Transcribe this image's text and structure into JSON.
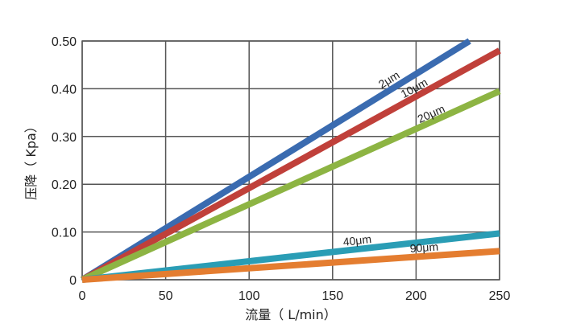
{
  "chart_data": {
    "type": "line",
    "xlabel": "流量（ L/min）",
    "ylabel": "压降（ Kpa）",
    "xlim": [
      0,
      250
    ],
    "ylim": [
      0,
      0.5
    ],
    "x_ticks": [
      "0",
      "50",
      "100",
      "150",
      "200",
      "250"
    ],
    "y_ticks": [
      "0",
      "0.10",
      "0.20",
      "0.30",
      "0.40",
      "0.50"
    ],
    "grid": true,
    "series": [
      {
        "name": "2μm",
        "color": "#3a6bb0",
        "points": [
          [
            0,
            0
          ],
          [
            232,
            0.5
          ]
        ]
      },
      {
        "name": "10μm",
        "color": "#c0403a",
        "points": [
          [
            0,
            0
          ],
          [
            250,
            0.48
          ]
        ]
      },
      {
        "name": "20μm",
        "color": "#8db443",
        "points": [
          [
            0,
            0
          ],
          [
            250,
            0.395
          ]
        ]
      },
      {
        "name": "40μm",
        "color": "#2a9db5",
        "points": [
          [
            0,
            0
          ],
          [
            250,
            0.097
          ]
        ]
      },
      {
        "name": "90μm",
        "color": "#e47d30",
        "points": [
          [
            0,
            0
          ],
          [
            250,
            0.06
          ]
        ]
      }
    ]
  }
}
